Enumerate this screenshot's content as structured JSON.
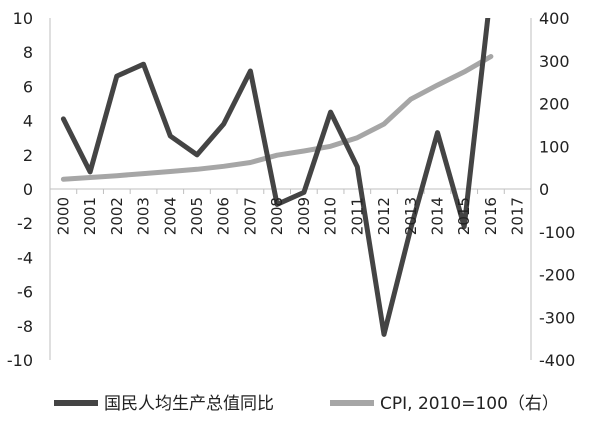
{
  "colors": {
    "gdp_line": "#444444",
    "cpi_line": "#a6a6a6",
    "axis": "#bfbfbf",
    "text": "#222222"
  },
  "chart_data": {
    "type": "line",
    "title": "",
    "xlabel": "",
    "ylabel": "",
    "categories": [
      "2000",
      "2001",
      "2002",
      "2003",
      "2004",
      "2005",
      "2006",
      "2007",
      "2008",
      "2009",
      "2010",
      "2011",
      "2012",
      "2013",
      "2014",
      "2015",
      "2016",
      "2017"
    ],
    "ylim_left": [
      -10,
      10
    ],
    "ylim_right": [
      -400,
      400
    ],
    "yticks_left": [
      "10",
      "8",
      "6",
      "4",
      "2",
      "0",
      "-2",
      "-4",
      "-6",
      "-8",
      "-10"
    ],
    "yticks_right": [
      "400",
      "300",
      "200",
      "100",
      "0",
      "-100",
      "-200",
      "-300",
      "-400"
    ],
    "grid": false,
    "legend_position": "bottom",
    "series": [
      {
        "name": "国民人均生产总值同比",
        "axis": "left",
        "color": "#444444",
        "values": [
          4.1,
          1.0,
          6.6,
          7.3,
          3.1,
          2.0,
          3.8,
          6.9,
          -0.9,
          -0.2,
          4.5,
          1.3,
          -8.5,
          -2.3,
          3.3,
          -2.2,
          11.6,
          null
        ]
      },
      {
        "name": "CPI, 2010=100（右）",
        "axis": "right",
        "color": "#a6a6a6",
        "values": [
          23,
          27,
          31,
          36,
          41,
          46,
          53,
          62,
          79,
          89,
          100,
          120,
          152,
          210,
          243,
          274,
          310,
          null
        ]
      }
    ]
  }
}
